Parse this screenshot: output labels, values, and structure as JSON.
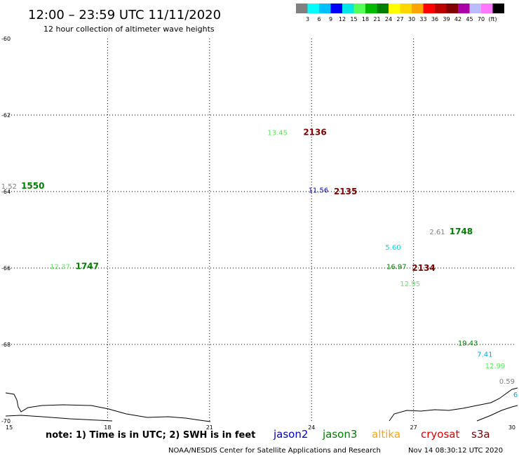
{
  "header": {
    "title": "12:00 – 23:59 UTC 11/11/2020",
    "subtitle": "12 hour collection of altimeter wave heights"
  },
  "legend": {
    "colors": [
      "#808080",
      "#00ffff",
      "#00bfff",
      "#0000ff",
      "#00e5e5",
      "#55ff55",
      "#00bb00",
      "#008000",
      "#ffff00",
      "#ffd700",
      "#ffa500",
      "#ff0000",
      "#bb0000",
      "#800000",
      "#aa00aa",
      "#bbbbff",
      "#ff77ff",
      "#000000"
    ],
    "labels": [
      "3",
      "6",
      "9",
      "12",
      "15",
      "18",
      "21",
      "24",
      "27",
      "30",
      "33",
      "36",
      "39",
      "42",
      "45",
      "70",
      "(ft)"
    ]
  },
  "chart_data": {
    "type": "scatter",
    "xlim": [
      15,
      30
    ],
    "ylim": [
      -70,
      -60
    ],
    "x_ticks": [
      "15",
      "18",
      "21",
      "24",
      "27",
      "30"
    ],
    "y_ticks": [
      "-60",
      "-62",
      "-64",
      "-66",
      "-68",
      "-70"
    ],
    "grid": true,
    "swh_points": [
      {
        "x": 15.1,
        "y": -63.85,
        "value": "1.52",
        "color": "#808080"
      },
      {
        "x": 23.0,
        "y": -62.45,
        "value": "13.45",
        "color": "#55ee55"
      },
      {
        "x": 24.2,
        "y": -63.95,
        "value": "11.56",
        "color": "#0000cc"
      },
      {
        "x": 16.6,
        "y": -65.95,
        "value": "12.37",
        "color": "#55ee55"
      },
      {
        "x": 26.4,
        "y": -65.45,
        "value": "5.60",
        "color": "#00dddd"
      },
      {
        "x": 26.5,
        "y": -65.95,
        "value": "16.97",
        "color": "#008000"
      },
      {
        "x": 26.9,
        "y": -66.4,
        "value": "12.95",
        "color": "#55ee55"
      },
      {
        "x": 27.7,
        "y": -65.05,
        "value": "2.61",
        "color": "#808080"
      },
      {
        "x": 28.6,
        "y": -67.95,
        "value": "19.43",
        "color": "#008000"
      },
      {
        "x": 29.1,
        "y": -68.25,
        "value": "7.41",
        "color": "#00aaee"
      },
      {
        "x": 29.4,
        "y": -68.55,
        "value": "12.99",
        "color": "#55ee55"
      },
      {
        "x": 29.75,
        "y": -68.95,
        "value": "0.59",
        "color": "#808080"
      },
      {
        "x": 30.0,
        "y": -69.3,
        "value": "6",
        "color": "#00aaee"
      }
    ],
    "time_labels": [
      {
        "x": 15.8,
        "y": -63.85,
        "value": "1550",
        "color": "#008000"
      },
      {
        "x": 24.1,
        "y": -62.45,
        "value": "2136",
        "color": "#800000"
      },
      {
        "x": 25.0,
        "y": -64.0,
        "value": "2135",
        "color": "#800000"
      },
      {
        "x": 28.4,
        "y": -65.05,
        "value": "1748",
        "color": "#008000"
      },
      {
        "x": 17.4,
        "y": -65.95,
        "value": "1747",
        "color": "#008000"
      },
      {
        "x": 27.3,
        "y": -66.0,
        "value": "2134",
        "color": "#800000"
      }
    ]
  },
  "footer": {
    "note": "note: 1) Time is in UTC; 2) SWH is in feet",
    "satellites": [
      {
        "name": "jason2",
        "color": "#0000cc"
      },
      {
        "name": "jason3",
        "color": "#008000"
      },
      {
        "name": "altika",
        "color": "#ffa500"
      },
      {
        "name": "cryosat",
        "color": "#dd0000"
      },
      {
        "name": "s3a",
        "color": "#800000"
      }
    ],
    "credit": "NOAA/NESDIS Center for Satellite Applications and Research",
    "timestamp": "Nov 14 08:30:12 UTC 2020"
  }
}
